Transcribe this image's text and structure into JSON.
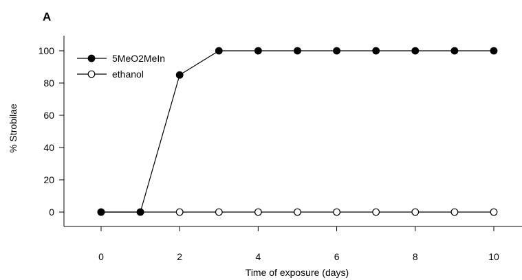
{
  "panel_label": "A",
  "chart_data": {
    "type": "line",
    "title": "",
    "xlabel": "Time of exposure (days)",
    "ylabel": "% Strobilae",
    "x": [
      0,
      1,
      2,
      3,
      4,
      5,
      6,
      7,
      8,
      9,
      10
    ],
    "xlim": [
      0,
      10
    ],
    "ylim": [
      0,
      100
    ],
    "xticks": [
      0,
      2,
      4,
      6,
      8,
      10
    ],
    "yticks": [
      0,
      20,
      40,
      60,
      80,
      100
    ],
    "xtick_labels": [
      "0",
      "2",
      "4",
      "6",
      "8",
      "10"
    ],
    "ytick_labels": [
      "0",
      "20",
      "40",
      "60",
      "80",
      "100"
    ],
    "grid": false,
    "legend_position": "top-left",
    "series": [
      {
        "name": "5MeO2MeIn",
        "marker": "filled-circle",
        "color": "#000000",
        "values": [
          0,
          0,
          85,
          100,
          100,
          100,
          100,
          100,
          100,
          100,
          100
        ]
      },
      {
        "name": "ethanol",
        "marker": "open-circle",
        "color": "#000000",
        "values": [
          0,
          0,
          0,
          0,
          0,
          0,
          0,
          0,
          0,
          0,
          0
        ]
      }
    ]
  }
}
